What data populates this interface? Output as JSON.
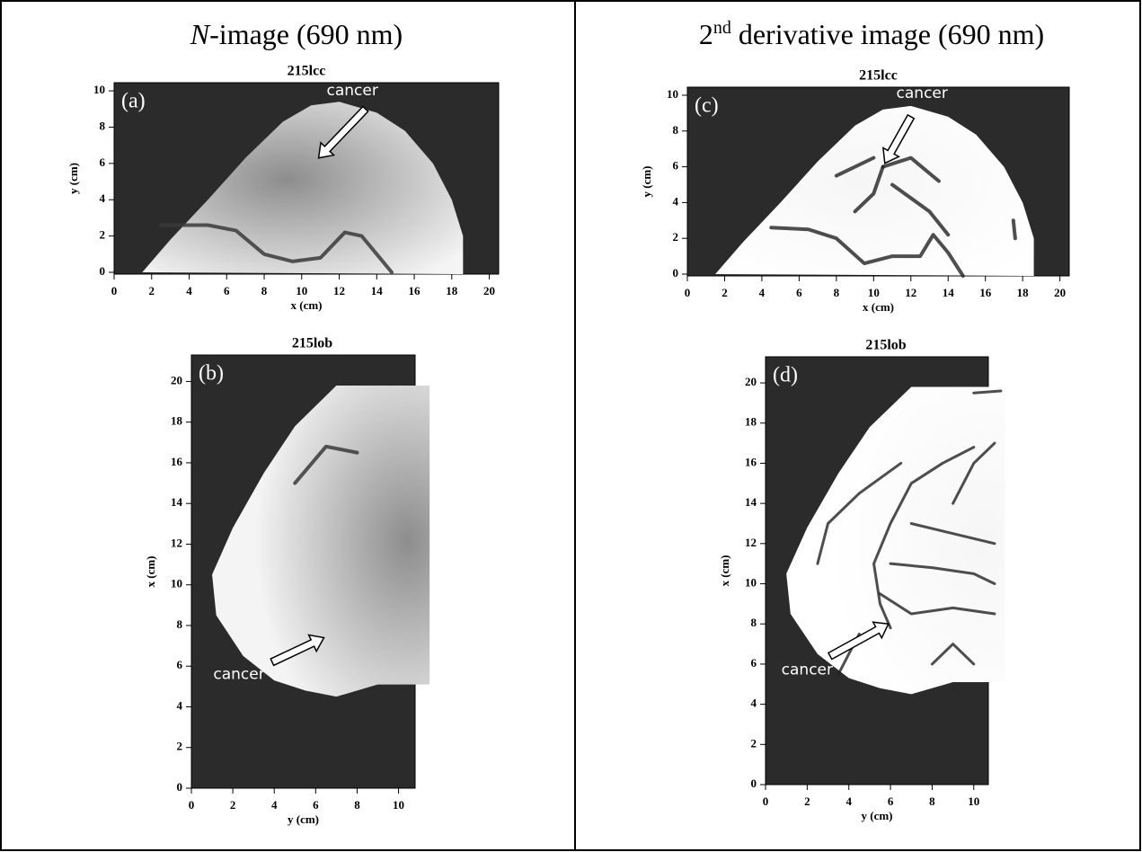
{
  "headings": [
    {
      "italic": "N",
      "text": "-image (690 nm)"
    },
    {
      "main": "2",
      "sup": "nd",
      "text": " derivative image (690 nm)"
    }
  ],
  "chart_data": [
    {
      "type": "image",
      "title": "215lcc",
      "panel_label": "(a)",
      "annotation": "cancer",
      "x_label": "x (cm)",
      "y_label": "y (cm)",
      "xlim": [
        0,
        20.5
      ],
      "ylim": [
        -0.1,
        10.45
      ],
      "xticks": [
        0,
        2,
        4,
        6,
        8,
        10,
        12,
        14,
        16,
        18,
        20
      ],
      "yticks": [
        0,
        2,
        4,
        6,
        8,
        10
      ]
    },
    {
      "type": "image",
      "title": "215lob",
      "panel_label": "(b)",
      "annotation": "cancer",
      "x_label": "y (cm)",
      "y_label": "x (cm)",
      "xlim": [
        0,
        10.8
      ],
      "ylim": [
        0,
        21.3
      ],
      "xticks": [
        0,
        2,
        4,
        6,
        8,
        10
      ],
      "yticks": [
        0,
        2,
        4,
        6,
        8,
        10,
        12,
        14,
        16,
        18,
        20
      ]
    },
    {
      "type": "image",
      "title": "215lcc",
      "panel_label": "(c)",
      "annotation": "cancer",
      "x_label": "x (cm)",
      "y_label": "y (cm)",
      "xlim": [
        0,
        20.5
      ],
      "ylim": [
        -0.1,
        10.45
      ],
      "xticks": [
        0,
        2,
        4,
        6,
        8,
        10,
        12,
        14,
        16,
        18,
        20
      ],
      "yticks": [
        0,
        2,
        4,
        6,
        8,
        10
      ]
    },
    {
      "type": "image",
      "title": "215lob",
      "panel_label": "(d)",
      "annotation": "cancer",
      "x_label": "y (cm)",
      "y_label": "x (cm)",
      "xlim": [
        0,
        10.7
      ],
      "ylim": [
        0,
        21.3
      ],
      "xticks": [
        0,
        2,
        4,
        6,
        8,
        10
      ],
      "yticks": [
        0,
        2,
        4,
        6,
        8,
        10,
        12,
        14,
        16,
        18,
        20
      ]
    }
  ]
}
